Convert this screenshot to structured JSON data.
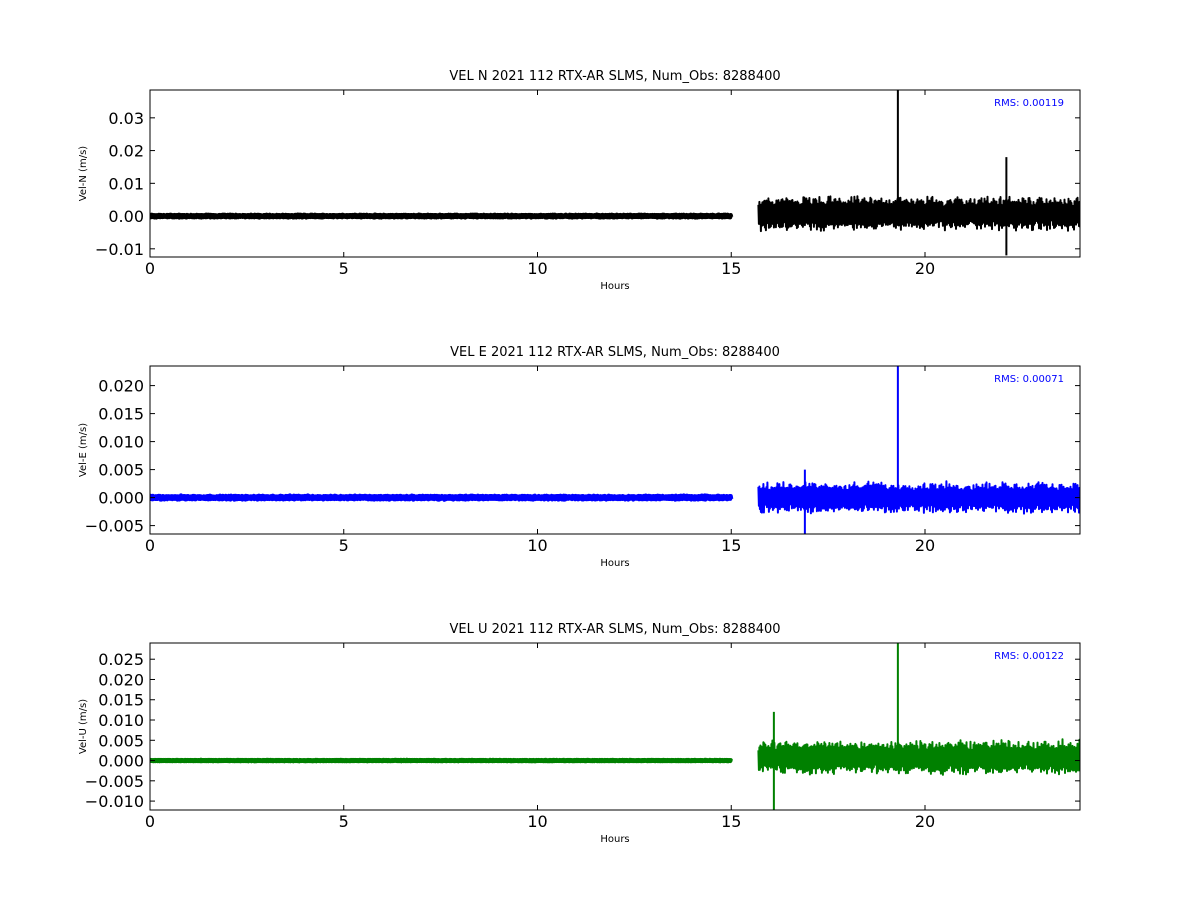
{
  "chart_data": [
    {
      "type": "line",
      "title": "VEL N 2021 112 RTX-AR  SLMS, Num_Obs: 8288400",
      "xlabel": "Hours",
      "ylabel": "Vel-N (m/s)",
      "xlim": [
        0,
        24
      ],
      "ylim": [
        -0.0125,
        0.0385
      ],
      "xticks": [
        "0",
        "5",
        "10",
        "15",
        "20"
      ],
      "xtick_values": [
        0,
        5,
        10,
        15,
        20
      ],
      "yticks": [
        "−0.01",
        "0.00",
        "0.01",
        "0.02",
        "0.03"
      ],
      "ytick_values": [
        -0.01,
        0.0,
        0.01,
        0.02,
        0.03
      ],
      "annotation": "RMS:  0.00119",
      "grid": false,
      "color": "#000000",
      "series": [
        {
          "segments": [
            {
              "x_start": 0.0,
              "x_end": 15.0,
              "center": 0.0,
              "amplitude": 0.0005
            },
            {
              "x_start": 15.7,
              "x_end": 24.0,
              "center": 0.0008,
              "amplitude": 0.0055
            }
          ],
          "spikes": [
            {
              "x": 19.3,
              "y_from": -0.003,
              "y_to": 0.0385
            },
            {
              "x": 22.1,
              "y_from": -0.012,
              "y_to": 0.018
            }
          ]
        }
      ]
    },
    {
      "type": "line",
      "title": "VEL E 2021 112 RTX-AR  SLMS, Num_Obs: 8288400",
      "xlabel": "Hours",
      "ylabel": "Vel-E (m/s)",
      "xlim": [
        0,
        24
      ],
      "ylim": [
        -0.0065,
        0.0235
      ],
      "xticks": [
        "0",
        "5",
        "10",
        "15",
        "20"
      ],
      "xtick_values": [
        0,
        5,
        10,
        15,
        20
      ],
      "yticks": [
        "−0.005",
        "0.000",
        "0.005",
        "0.010",
        "0.015",
        "0.020"
      ],
      "ytick_values": [
        -0.005,
        0.0,
        0.005,
        0.01,
        0.015,
        0.02
      ],
      "annotation": "RMS:  0.00071",
      "grid": false,
      "color": "#0000ff",
      "series": [
        {
          "segments": [
            {
              "x_start": 0.0,
              "x_end": 15.0,
              "center": 0.0,
              "amplitude": 0.0004
            },
            {
              "x_start": 15.7,
              "x_end": 24.0,
              "center": 0.0,
              "amplitude": 0.003
            }
          ],
          "spikes": [
            {
              "x": 19.3,
              "y_from": -0.002,
              "y_to": 0.0235
            },
            {
              "x": 16.9,
              "y_from": -0.0065,
              "y_to": 0.005
            }
          ]
        }
      ]
    },
    {
      "type": "line",
      "title": "VEL U 2021 112 RTX-AR  SLMS, Num_Obs: 8288400",
      "xlabel": "Hours",
      "ylabel": "Vel-U (m/s)",
      "xlim": [
        0,
        24
      ],
      "ylim": [
        -0.0122,
        0.029
      ],
      "xticks": [
        "0",
        "5",
        "10",
        "15",
        "20"
      ],
      "xtick_values": [
        0,
        5,
        10,
        15,
        20
      ],
      "yticks": [
        "−0.010",
        "−0.005",
        "0.000",
        "0.005",
        "0.010",
        "0.015",
        "0.020",
        "0.025"
      ],
      "ytick_values": [
        -0.01,
        -0.005,
        0.0,
        0.005,
        0.01,
        0.015,
        0.02,
        0.025
      ],
      "annotation": "RMS:  0.00122",
      "grid": false,
      "color": "#008000",
      "series": [
        {
          "segments": [
            {
              "x_start": 0.0,
              "x_end": 15.0,
              "center": 0.0,
              "amplitude": 0.0002
            },
            {
              "x_start": 15.7,
              "x_end": 24.0,
              "center": 0.0008,
              "amplitude": 0.0045
            }
          ],
          "spikes": [
            {
              "x": 19.3,
              "y_from": -0.002,
              "y_to": 0.029
            },
            {
              "x": 16.1,
              "y_from": -0.0122,
              "y_to": 0.012
            }
          ]
        }
      ]
    }
  ]
}
